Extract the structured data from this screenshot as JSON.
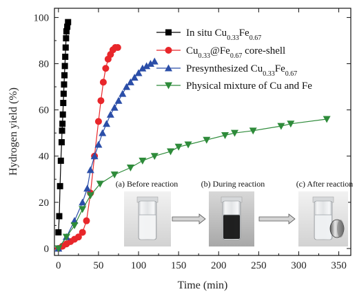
{
  "chart_data": {
    "type": "scatter",
    "xlabel": "Time (min)",
    "ylabel": "Hydrogen yield (%)",
    "xlim": [
      -5,
      365
    ],
    "ylim": [
      -3,
      104
    ],
    "xticks": [
      "0",
      "50",
      "100",
      "150",
      "200",
      "250",
      "300",
      "350"
    ],
    "yticks": [
      "0",
      "20",
      "40",
      "60",
      "80",
      "100"
    ],
    "grid": false,
    "legend_position": "top-right",
    "series": [
      {
        "name": "In situ Cu0.33Fe0.67",
        "legend": {
          "prefix": "In situ Cu",
          "sub1": "0.33",
          "mid": "Fe",
          "sub2": "0.67",
          "suffix": ""
        },
        "color": "#000000",
        "marker": "square",
        "line": true,
        "x": [
          0,
          1,
          2,
          3,
          4,
          4.5,
          5,
          5.5,
          6,
          6.5,
          7,
          7.5,
          8,
          8.5,
          9,
          9.5,
          10,
          11,
          12
        ],
        "y": [
          7,
          14,
          27,
          38,
          46,
          51,
          54,
          58,
          63,
          67,
          71,
          75,
          79,
          83,
          87,
          91,
          94,
          96,
          98
        ]
      },
      {
        "name": "Cu0.33@Fe0.67 core-shell",
        "legend": {
          "prefix": "Cu",
          "sub1": "0.33",
          "mid": "@Fe",
          "sub2": "0.67",
          "suffix": " core-shell"
        },
        "color": "#e8262a",
        "marker": "circle",
        "line": true,
        "x": [
          0,
          5,
          10,
          15,
          20,
          25,
          30,
          35,
          40,
          45,
          50,
          53,
          56,
          59,
          62,
          65,
          68,
          71,
          74
        ],
        "y": [
          0,
          1,
          2,
          3,
          4,
          5,
          7,
          12,
          24,
          40,
          55,
          64,
          72,
          78,
          82,
          84,
          86,
          87,
          87
        ]
      },
      {
        "name": "Presynthesized Cu0.33Fe0.67",
        "legend": {
          "prefix": "Presynthesized Cu",
          "sub1": "0.33",
          "mid": "Fe",
          "sub2": "0.67",
          "suffix": ""
        },
        "color": "#2b4ea8",
        "marker": "triangle-up",
        "line": true,
        "x": [
          0,
          10,
          20,
          30,
          36,
          40,
          45,
          50,
          55,
          60,
          65,
          70,
          75,
          80,
          85,
          90,
          95,
          100,
          105,
          110,
          115,
          120
        ],
        "y": [
          0,
          5,
          12,
          20,
          26,
          34,
          40,
          45,
          50,
          54,
          58,
          61,
          64,
          67,
          70,
          72,
          74,
          76,
          78,
          79,
          80,
          81
        ]
      },
      {
        "name": "Physical mixture of Cu and Fe",
        "legend": {
          "prefix": "Physical mixture of Cu and Fe",
          "sub1": "",
          "mid": "",
          "sub2": "",
          "suffix": ""
        },
        "color": "#2e8b3a",
        "marker": "triangle-down",
        "line": true,
        "x": [
          0,
          10,
          20,
          30,
          40,
          52,
          70,
          90,
          105,
          120,
          140,
          150,
          162,
          185,
          208,
          220,
          243,
          278,
          290,
          335
        ],
        "y": [
          0,
          5,
          10,
          17,
          23,
          28,
          32,
          35,
          38,
          40,
          42,
          44,
          45,
          47,
          49,
          50,
          51,
          53,
          54,
          56
        ]
      }
    ],
    "inset": {
      "captions": [
        "(a) Before reaction",
        "(b) During reaction",
        "(c) After reaction"
      ]
    }
  }
}
